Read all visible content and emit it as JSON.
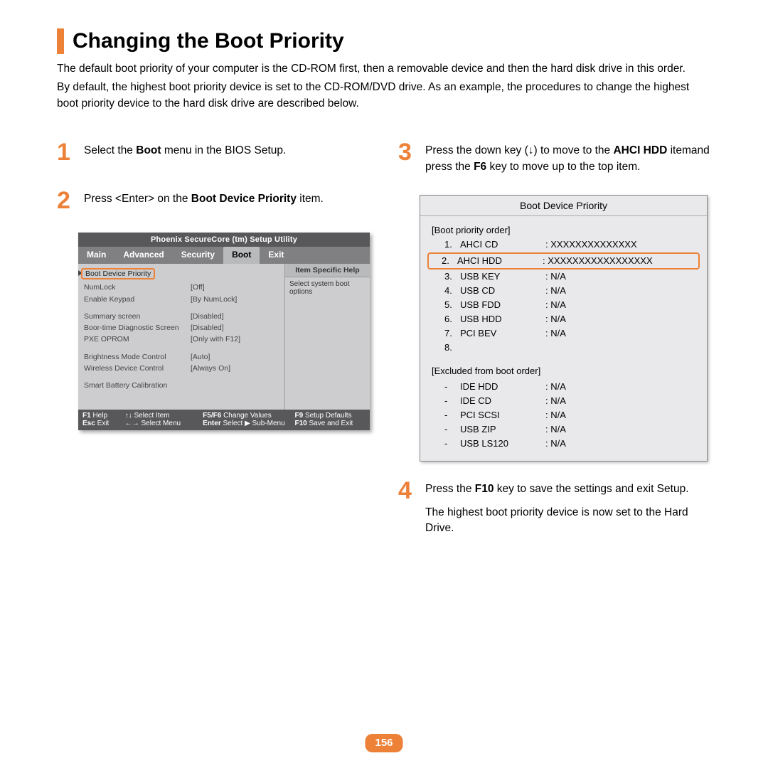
{
  "title": "Changing the Boot Priority",
  "intro_p1": "The default boot priority of your computer is the CD-ROM first, then a removable device and then the hard disk drive in this order.",
  "intro_p2": "By default, the highest boot priority device is set to the CD-ROM/DVD drive. As an example, the procedures to change the highest boot priority device to the hard disk drive are described below.",
  "steps": {
    "n1": "1",
    "n2": "2",
    "n3": "3",
    "n4": "4",
    "s1_a": "Select the ",
    "s1_b": "Boot",
    "s1_c": " menu in the BIOS Setup.",
    "s2_a": "Press <Enter> on the ",
    "s2_b": "Boot Device Priority",
    "s2_c": " item.",
    "s3_a": "Press the down key (↓) to move to the ",
    "s3_b": "AHCI HDD",
    "s3_c": " itemand press the ",
    "s3_d": "F6",
    "s3_e": " key to move up to the top item.",
    "s4_a": "Press the ",
    "s4_b": "F10",
    "s4_c": " key to save the settings and exit Setup.",
    "s4_p2": "The highest boot priority device is now set to the Hard Drive."
  },
  "bios": {
    "header": "Phoenix SecureCore (tm) Setup Utility",
    "tabs": [
      "Main",
      "Advanced",
      "Security",
      "Boot",
      "Exit"
    ],
    "active_tab_index": 3,
    "highlight_item": "Boot Device Priority",
    "rows": [
      {
        "label": "NumLock",
        "value": "[Off]"
      },
      {
        "label": "Enable Keypad",
        "value": "[By NumLock]"
      },
      {
        "label": "",
        "value": ""
      },
      {
        "label": "Summary screen",
        "value": "[Disabled]"
      },
      {
        "label": "Boor-time Diagnostic Screen",
        "value": "[Disabled]"
      },
      {
        "label": "PXE OPROM",
        "value": "[Only with F12]"
      },
      {
        "label": "",
        "value": ""
      },
      {
        "label": "Brightness Mode Control",
        "value": "[Auto]"
      },
      {
        "label": "Wireless Device Control",
        "value": "[Always On]"
      },
      {
        "label": "",
        "value": ""
      },
      {
        "label": "Smart Battery Calibration",
        "value": ""
      }
    ],
    "help_title": "Item Specific Help",
    "help_body": "Select system boot options",
    "footer": {
      "r1": [
        {
          "k": "F1",
          "l": "Help"
        },
        {
          "k": "↑↓",
          "l": "Select Item"
        },
        {
          "k": "F5/F6",
          "l": "Change Values"
        },
        {
          "k": "F9",
          "l": "Setup Defaults"
        }
      ],
      "r2": [
        {
          "k": "Esc",
          "l": "Exit"
        },
        {
          "k": "←→",
          "l": "Select Menu"
        },
        {
          "k": "Enter",
          "l": "Select ▶ Sub-Menu"
        },
        {
          "k": "F10",
          "l": "Save and Exit"
        }
      ]
    }
  },
  "bdp": {
    "title": "Boot Device Priority",
    "order_label": "[Boot priority order]",
    "order": [
      {
        "n": "1.",
        "dev": "AHCI CD",
        "val": ": XXXXXXXXXXXXXX"
      },
      {
        "n": "2.",
        "dev": "AHCI HDD",
        "val": ": XXXXXXXXXXXXXXXXX",
        "highlight": true
      },
      {
        "n": "3.",
        "dev": "USB KEY",
        "val": ": N/A"
      },
      {
        "n": "4.",
        "dev": "USB CD",
        "val": ": N/A"
      },
      {
        "n": "5.",
        "dev": "USB FDD",
        "val": ": N/A"
      },
      {
        "n": "6.",
        "dev": "USB HDD",
        "val": ": N/A"
      },
      {
        "n": "7.",
        "dev": "PCI BEV",
        "val": ": N/A"
      },
      {
        "n": "8.",
        "dev": "",
        "val": ""
      }
    ],
    "excluded_label": "[Excluded from boot order]",
    "excluded": [
      {
        "n": "-",
        "dev": "IDE HDD",
        "val": ": N/A"
      },
      {
        "n": "-",
        "dev": "IDE CD",
        "val": ": N/A"
      },
      {
        "n": "-",
        "dev": "PCI SCSI",
        "val": ": N/A"
      },
      {
        "n": "-",
        "dev": "USB ZIP",
        "val": ": N/A"
      },
      {
        "n": "-",
        "dev": "USB LS120",
        "val": ": N/A"
      }
    ]
  },
  "page_number": "156",
  "colors": {
    "accent": "#ed8137",
    "bios_dark": "#58585a",
    "bios_mid": "#808083",
    "bios_light": "#cdcdcf",
    "panel_bg": "#e9e9eb"
  }
}
